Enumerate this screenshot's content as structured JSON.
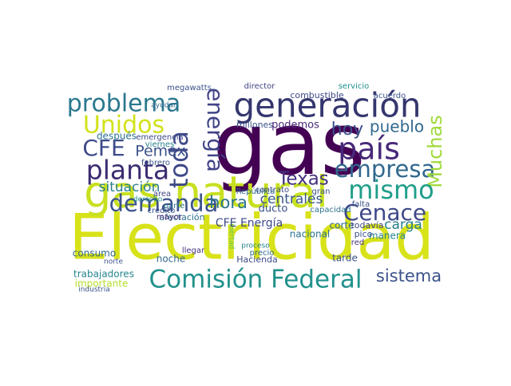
{
  "words": [
    {
      "text": "Electricidad",
      "color": "#d8e219"
    },
    {
      "text": "gas",
      "color": "#440154"
    },
    {
      "text": "gas natural",
      "color": "#c8e020"
    },
    {
      "text": "generación",
      "color": "#35366e"
    },
    {
      "text": "problema",
      "color": "#2a788e"
    },
    {
      "text": "Unidos",
      "color": "#d2e21b"
    },
    {
      "text": "CFE",
      "color": "#3e4a89"
    },
    {
      "text": "Pemex",
      "color": "#3b528b"
    },
    {
      "text": "planta",
      "color": "#3b2c70"
    },
    {
      "text": "toda",
      "color": "#3e4989"
    },
    {
      "text": "energía",
      "color": "#414487"
    },
    {
      "text": "país",
      "color": "#482878"
    },
    {
      "text": "empresa",
      "color": "#31688e"
    },
    {
      "text": "hoy",
      "color": "#3b528b"
    },
    {
      "text": "pueblo",
      "color": "#31688e"
    },
    {
      "text": "Muchas",
      "color": "#a0da39"
    },
    {
      "text": "mismo",
      "color": "#1f9e89"
    },
    {
      "text": "Cenace",
      "color": "#3e4989"
    },
    {
      "text": "Texas",
      "color": "#46327e"
    },
    {
      "text": "demanda",
      "color": "#3b528b"
    },
    {
      "text": "hora",
      "color": "#2c728e"
    },
    {
      "text": "centrales",
      "color": "#38588c"
    },
    {
      "text": "carga",
      "color": "#277f8e"
    },
    {
      "text": "situación",
      "color": "#277f8e"
    },
    {
      "text": "Comisión Federal",
      "color": "#21918c"
    },
    {
      "text": "sistema",
      "color": "#3b528b"
    },
    {
      "text": "trabajadores",
      "color": "#25858e"
    },
    {
      "text": "importante",
      "color": "#b5de2b"
    },
    {
      "text": "industria",
      "color": "#3b528b"
    },
    {
      "text": "noche",
      "color": "#31688e"
    },
    {
      "text": "Hacienda",
      "color": "#3e4a89"
    },
    {
      "text": "llegar",
      "color": "#46327e"
    },
    {
      "text": "tarde",
      "color": "#3b528b"
    },
    {
      "text": "nacional",
      "color": "#2c728e"
    },
    {
      "text": "corte",
      "color": "#31688e"
    },
    {
      "text": "todavía",
      "color": "#3e4989"
    },
    {
      "text": "manera",
      "color": "#26828e"
    },
    {
      "text": "afectación",
      "color": "#2c728e"
    },
    {
      "text": "megawatts",
      "color": "#3b528b"
    },
    {
      "text": "director",
      "color": "#414487"
    },
    {
      "text": "combustible",
      "color": "#3e4989"
    },
    {
      "text": "servicio",
      "color": "#21918c"
    },
    {
      "text": "acuerdo",
      "color": "#3b528b"
    },
    {
      "text": "podemos",
      "color": "#482878"
    },
    {
      "text": "millones",
      "color": "#3b528b"
    },
    {
      "text": "ayudar",
      "color": "#31688e"
    },
    {
      "text": "después",
      "color": "#2c728e"
    },
    {
      "text": "emergencia",
      "color": "#3e4989"
    },
    {
      "text": "viernes",
      "color": "#26828e"
    },
    {
      "text": "febrero",
      "color": "#3b528b"
    },
    {
      "text": "área",
      "color": "#414487"
    },
    {
      "text": "derecho",
      "color": "#21918c"
    },
    {
      "text": "crédito",
      "color": "#3b528b"
    },
    {
      "text": "libertad",
      "color": "#5ec962"
    },
    {
      "text": "mayor",
      "color": "#482878"
    },
    {
      "text": "consumo",
      "color": "#31688e"
    },
    {
      "text": "norte",
      "color": "#3b528b"
    },
    {
      "text": "CFE Energía",
      "color": "#3e4989"
    },
    {
      "text": "ducto",
      "color": "#3b528b"
    },
    {
      "text": "parte",
      "color": "#2c728e"
    },
    {
      "text": "red",
      "color": "#46327e"
    },
    {
      "text": "pico",
      "color": "#3b528b"
    },
    {
      "text": "precio",
      "color": "#31688e"
    },
    {
      "text": "proceso",
      "color": "#26828e"
    },
    {
      "text": "contrato",
      "color": "#3e4989"
    },
    {
      "text": "gran",
      "color": "#3b528b"
    },
    {
      "text": "capacidad",
      "color": "#2c728e"
    },
    {
      "text": "falta",
      "color": "#3b528b"
    },
    {
      "text": "República",
      "color": "#31688e"
    }
  ]
}
